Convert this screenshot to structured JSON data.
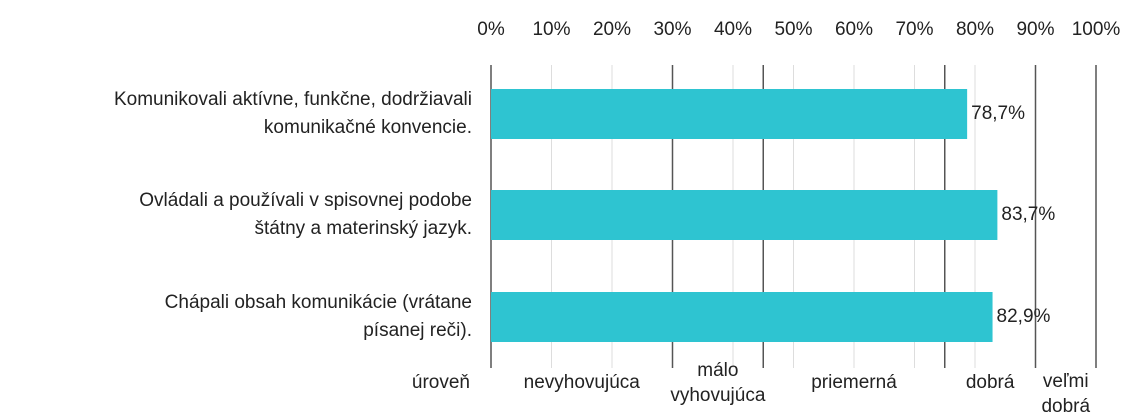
{
  "chart_data": {
    "type": "bar",
    "orientation": "horizontal",
    "categories": [
      [
        "Komunikovali aktívne, funkčne, dodržiavali",
        "komunikačné konvencie."
      ],
      [
        "Ovládali a používali v spisovnej podobe",
        "štátny a materinský jazyk."
      ],
      [
        "Chápali obsah komunikácie (vrátane",
        "písanej reči)."
      ]
    ],
    "values": [
      78.7,
      83.7,
      82.9
    ],
    "value_labels": [
      "78,7%",
      "83,7%",
      "82,9%"
    ],
    "color": "#2ec4d1",
    "xlim": [
      0,
      100
    ],
    "xticks": [
      {
        "value": 0,
        "label": "0%"
      },
      {
        "value": 10,
        "label": "10%"
      },
      {
        "value": 20,
        "label": "20%"
      },
      {
        "value": 30,
        "label": "30%"
      },
      {
        "value": 40,
        "label": "40%"
      },
      {
        "value": 50,
        "label": "50%"
      },
      {
        "value": 60,
        "label": "60%"
      },
      {
        "value": 70,
        "label": "70%"
      },
      {
        "value": 80,
        "label": "80%"
      },
      {
        "value": 90,
        "label": "90%"
      },
      {
        "value": 100,
        "label": "100%"
      }
    ],
    "grid": true,
    "band_title": "úroveň",
    "bands": [
      {
        "label": [
          "nevyhovujúca"
        ],
        "to": 30
      },
      {
        "label": [
          "málo",
          "vyhovujúca"
        ],
        "to": 45
      },
      {
        "label": [
          "priemerná"
        ],
        "to": 75
      },
      {
        "label": [
          "dobrá"
        ],
        "to": 90
      },
      {
        "label": [
          "veľmi",
          "dobrá"
        ],
        "to": 100
      }
    ]
  }
}
